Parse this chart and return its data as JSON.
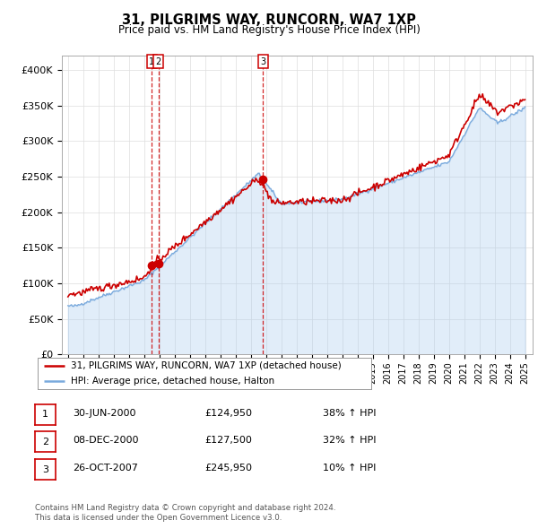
{
  "title": "31, PILGRIMS WAY, RUNCORN, WA7 1XP",
  "subtitle": "Price paid vs. HM Land Registry's House Price Index (HPI)",
  "ylim": [
    0,
    420000
  ],
  "yticks": [
    0,
    50000,
    100000,
    150000,
    200000,
    250000,
    300000,
    350000,
    400000
  ],
  "sale_dates": [
    2000.49,
    2000.93,
    2007.81
  ],
  "sale_prices": [
    124950,
    127500,
    245950
  ],
  "sale_labels": [
    "1",
    "2",
    "3"
  ],
  "legend_line1": "31, PILGRIMS WAY, RUNCORN, WA7 1XP (detached house)",
  "legend_line2": "HPI: Average price, detached house, Halton",
  "table_data": [
    [
      "1",
      "30-JUN-2000",
      "£124,950",
      "38% ↑ HPI"
    ],
    [
      "2",
      "08-DEC-2000",
      "£127,500",
      "32% ↑ HPI"
    ],
    [
      "3",
      "26-OCT-2007",
      "£245,950",
      "10% ↑ HPI"
    ]
  ],
  "footer": "Contains HM Land Registry data © Crown copyright and database right 2024.\nThis data is licensed under the Open Government Licence v3.0.",
  "hpi_color": "#7aaadd",
  "hpi_fill_color": "#aaccee",
  "price_color": "#cc0000",
  "background_color": "#ffffff",
  "grid_color": "#dddddd"
}
